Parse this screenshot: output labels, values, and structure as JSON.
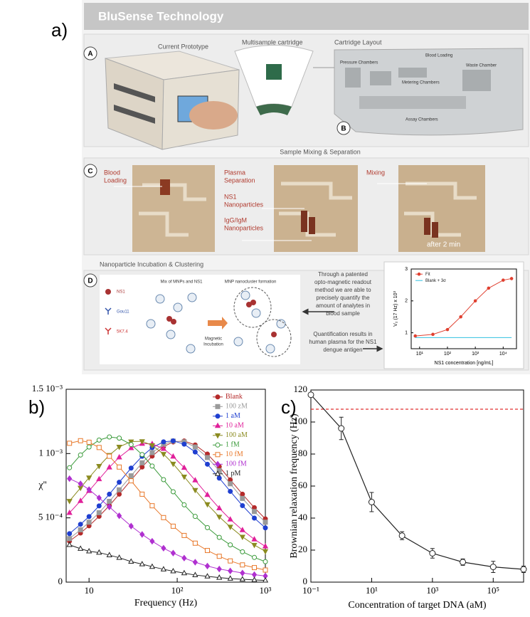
{
  "panel_labels": [
    "a)",
    "b)",
    "c)"
  ],
  "panel_a": {
    "title": "BluSense Technology",
    "badges": [
      "A",
      "B",
      "C",
      "D"
    ],
    "prototype_label": "Current Prototype",
    "cartridge_label": "Multisample cartridge",
    "layout_label": "Cartridge Layout",
    "layout_parts": [
      "Pressure Chambers",
      "Blood Loading",
      "Metering Chambers",
      "Waste Chamber",
      "Assay Chambers"
    ],
    "mixing_title": "Sample Mixing & Separation",
    "mixing_labels": {
      "blood": [
        "Blood",
        "Loading"
      ],
      "plasma": [
        "Plasma",
        "Separation"
      ],
      "ns1": [
        "NS1",
        "Nanoparticles"
      ],
      "igg": [
        "IgG/IgM",
        "Nanoparticles"
      ],
      "mixing": "Mixing",
      "time": "after 2 min"
    },
    "clustering_title": "Nanoparticle Incubation & Clustering",
    "clustering_legend": [
      "NS1",
      "Gou11",
      "5K7.4"
    ],
    "mix_label": "Mix of MNPs and NS1",
    "formation_label": "MNP nanocluster formation",
    "incubation_label": [
      "Magnetic",
      "Incubation"
    ],
    "readout_text": [
      "Through a patented",
      "opto-magnetic readout",
      "method we are able to",
      "precisely quantify the",
      "amount of analytes in",
      "blood sample"
    ],
    "result_text": [
      "Quantification results in",
      "human plasma for the NS1",
      "dengue antigen"
    ]
  },
  "chart_data": [
    {
      "type": "line",
      "xlabel": "Frequency (Hz)",
      "ylabel": "χ''",
      "log_x": true,
      "xlim": [
        5.5,
        1000
      ],
      "ylim": [
        0,
        0.0015
      ],
      "xticks": [
        10,
        {
          "value": 100,
          "label": "10²"
        },
        {
          "value": 1000,
          "label": "10³"
        }
      ],
      "yticks": [
        0,
        {
          "value": 0.0005,
          "label": "5 10⁻⁴"
        },
        {
          "value": 0.001,
          "label": "1 10⁻³"
        },
        {
          "value": 0.0015,
          "label": "1.5 10⁻³"
        }
      ],
      "legend": "upper right",
      "x": [
        6,
        8,
        10,
        13,
        17,
        22,
        30,
        40,
        52,
        70,
        90,
        120,
        160,
        220,
        300,
        400,
        550,
        750,
        1000
      ],
      "series": [
        {
          "name": "Blank",
          "color": "#b52a2a",
          "marker": "circle",
          "filled": true,
          "values": [
            0.000319,
            0.000382,
            0.000438,
            0.000512,
            0.000595,
            0.000684,
            0.000794,
            0.000895,
            0.00098,
            0.001054,
            0.00109,
            0.001098,
            0.001067,
            0.000996,
            0.000898,
            0.000796,
            0.000684,
            0.000579,
            0.000492
          ]
        },
        {
          "name": "100 zM",
          "color": "#9a9a9a",
          "marker": "square",
          "filled": true,
          "values": [
            0.000339,
            0.000407,
            0.000466,
            0.00054,
            0.000628,
            0.000718,
            0.000827,
            0.000928,
            0.001007,
            0.001071,
            0.001097,
            0.001091,
            0.001051,
            0.000969,
            0.000867,
            0.000765,
            0.000651,
            0.000549,
            0.000466
          ]
        },
        {
          "name": "1 aM",
          "color": "#1f3fd0",
          "marker": "circle",
          "filled": true,
          "values": [
            0.000377,
            0.00045,
            0.00051,
            0.000593,
            0.000684,
            0.000777,
            0.000887,
            0.000979,
            0.001046,
            0.001091,
            0.001099,
            0.001073,
            0.001012,
            0.000917,
            0.000809,
            0.000706,
            0.000595,
            0.000498,
            0.000422
          ]
        },
        {
          "name": "10 aM",
          "color": "#e0209a",
          "marker": "triangle",
          "filled": true,
          "values": [
            0.000539,
            0.000632,
            0.00071,
            0.000801,
            0.000893,
            0.000971,
            0.001043,
            0.001077,
            0.001075,
            0.001037,
            0.000977,
            0.00089,
            0.000792,
            0.000679,
            0.000575,
            0.000488,
            0.000405,
            0.000333,
            0.000278
          ]
        },
        {
          "name": "100 aM",
          "color": "#8b8b20",
          "marker": "triangle-down",
          "filled": true,
          "values": [
            0.000631,
            0.000733,
            0.000813,
            0.000903,
            0.000988,
            0.001052,
            0.001093,
            0.001095,
            0.001064,
            0.000996,
            0.00092,
            0.00082,
            0.000716,
            0.000605,
            0.000508,
            0.00043,
            0.000352,
            0.000289,
            0.00024
          ]
        },
        {
          "name": "1 fM",
          "color": "#3a9a3a",
          "marker": "circle",
          "filled": false,
          "values": [
            0.00089,
            0.000989,
            0.001051,
            0.001105,
            0.001129,
            0.00112,
            0.00107,
            0.000992,
            0.000903,
            0.000797,
            0.000703,
            0.000601,
            0.000511,
            0.000424,
            0.000348,
            0.00029,
            0.000236,
            0.000192,
            0.000159
          ]
        },
        {
          "name": "10 fM",
          "color": "#e8782a",
          "marker": "square",
          "filled": false,
          "values": [
            0.00108,
            0.0011,
            0.001088,
            0.001047,
            0.000979,
            0.000895,
            0.000788,
            0.000684,
            0.000594,
            0.000502,
            0.000435,
            0.000363,
            0.000303,
            0.000246,
            0.000201,
            0.000165,
            0.000134,
            0.000113,
            9.4e-05
          ]
        },
        {
          "name": "100 fM",
          "color": "#b030d0",
          "marker": "diamond",
          "filled": true,
          "values": [
            0.000805,
            0.000765,
            0.00072,
            0.000655,
            0.000585,
            0.000516,
            0.000436,
            0.000371,
            0.000318,
            0.000264,
            0.000226,
            0.000187,
            0.000155,
            0.000125,
            0.000102,
            8.7e-05,
            7.1e-05,
            5.8e-05,
            4.8e-05
          ]
        },
        {
          "name": "1 pM",
          "color": "#222222",
          "marker": "triangle",
          "filled": false,
          "values": [
            0.00029,
            0.00026,
            0.00024,
            0.00023,
            0.00021,
            0.00019,
            0.00016,
            0.00014,
            0.00012,
            0.0001,
            8.5e-05,
            7e-05,
            5.5e-05,
            4.5e-05,
            3.5e-05,
            2.8e-05,
            2.2e-05,
            1.7e-05,
            1.3e-05
          ]
        }
      ]
    },
    {
      "type": "line",
      "xlabel": "Concentration of target DNA (aM)",
      "ylabel": "Brownian relaxation frequency (Hz)",
      "log_x": true,
      "xlim": [
        0.1,
        1000000
      ],
      "ylim": [
        0,
        120
      ],
      "xticks": [
        {
          "value": 0.1,
          "label": "10⁻¹"
        },
        {
          "value": 10,
          "label": "10¹"
        },
        {
          "value": 1000,
          "label": "10³"
        },
        {
          "value": 100000,
          "label": "10⁵"
        }
      ],
      "yticks": [
        0,
        20,
        40,
        60,
        80,
        100,
        120
      ],
      "hline": {
        "value": 108,
        "color": "#e03030"
      },
      "x": [
        0.1,
        1,
        10,
        100,
        1000,
        10000,
        100000,
        1000000
      ],
      "series": [
        {
          "color": "#222222",
          "marker": "circle",
          "filled": false,
          "values": [
            117,
            96,
            50,
            29,
            18,
            12.5,
            9.5,
            8
          ],
          "errors": [
            1,
            7,
            6,
            2.5,
            3,
            2,
            3.5,
            2
          ]
        }
      ]
    },
    {
      "type": "line",
      "xlabel": "NS1 concentration [ng/mL]",
      "ylabel": "V₂ (17 Hz) x 10³",
      "log_x": true,
      "xlim": [
        5,
        30000
      ],
      "ylim": [
        0.5,
        3
      ],
      "xticks": [
        {
          "value": 10,
          "label": "10¹"
        },
        {
          "value": 100,
          "label": "10²"
        },
        {
          "value": 1000,
          "label": "10³"
        },
        {
          "value": 10000,
          "label": "10⁴"
        }
      ],
      "yticks": [
        1,
        2,
        3
      ],
      "legend": "upper left",
      "x": [
        7,
        30,
        100,
        300,
        1000,
        3000,
        10000,
        20000
      ],
      "series": [
        {
          "name": "Fit",
          "color": "#e04030",
          "marker": "circle",
          "filled": true,
          "values": [
            0.9,
            0.95,
            1.1,
            1.5,
            2.0,
            2.4,
            2.65,
            2.7
          ]
        },
        {
          "name": "Blank + 3σ",
          "color": "#30c0e0",
          "values": [
            0.85,
            0.85,
            0.85,
            0.85,
            0.85,
            0.85,
            0.85,
            0.85
          ]
        }
      ]
    }
  ]
}
